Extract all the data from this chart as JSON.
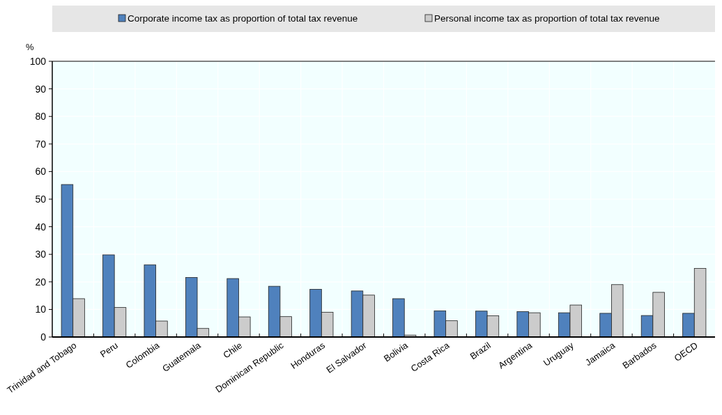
{
  "chart_data": {
    "type": "bar",
    "ylabel": "%",
    "categories": [
      "Trinidad and Tobago",
      "Peru",
      "Colombia",
      "Guatemala",
      "Chile",
      "Dominican Republic",
      "Honduras",
      "El Salvador",
      "Bolivia",
      "Costa Rica",
      "Brazil",
      "Argentina",
      "Uruguay",
      "Jamaica",
      "Barbados",
      "OECD"
    ],
    "series": [
      {
        "name": "Corporate income tax as proportion of total tax revenue",
        "color": "#4f81bd",
        "values": [
          55.3,
          29.8,
          26.2,
          21.6,
          21.2,
          18.4,
          17.3,
          16.7,
          13.9,
          9.5,
          9.4,
          9.2,
          8.8,
          8.6,
          7.8,
          8.6
        ]
      },
      {
        "name": "Personal income tax as proportion of total tax revenue",
        "color": "#cccccc",
        "values": [
          13.9,
          10.7,
          5.8,
          3.1,
          7.3,
          7.4,
          9.0,
          15.2,
          0.7,
          5.9,
          7.7,
          8.8,
          11.6,
          19.0,
          16.2,
          24.9
        ]
      }
    ],
    "ylim": [
      0,
      100
    ],
    "yticks": [
      0,
      10,
      20,
      30,
      40,
      50,
      60,
      70,
      80,
      90,
      100
    ],
    "grid": "y",
    "legend": "top"
  }
}
